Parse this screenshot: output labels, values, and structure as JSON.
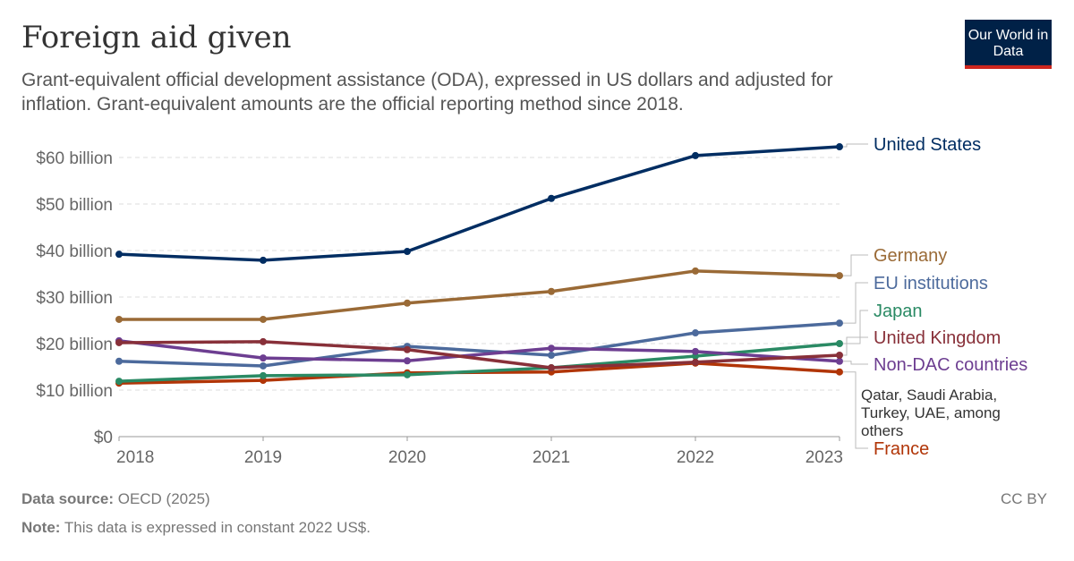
{
  "title": "Foreign aid given",
  "subtitle": "Grant-equivalent official development assistance (ODA), expressed in US dollars and adjusted for inflation. Grant-equivalent amounts are the official reporting method since 2018.",
  "logo": "Our World in Data",
  "footer": {
    "source_label": "Data source:",
    "source": "OECD (2025)",
    "note_label": "Note:",
    "note": "This data is expressed in constant 2022 US$.",
    "license": "CC BY"
  },
  "chart_data": {
    "type": "line",
    "x": [
      2018,
      2019,
      2020,
      2021,
      2022,
      2023
    ],
    "ylim": [
      0,
      60
    ],
    "yticks": [
      0,
      10,
      20,
      30,
      40,
      50,
      60
    ],
    "ytick_labels": [
      "$0",
      "$10 billion",
      "$20 billion",
      "$30 billion",
      "$40 billion",
      "$50 billion",
      "$60 billion"
    ],
    "xtick_labels": [
      "2018",
      "2019",
      "2020",
      "2021",
      "2022",
      "2023"
    ],
    "grid": "horizontal dashed",
    "legend": "right, inline labels",
    "series": [
      {
        "name": "United States",
        "color": "#002d62",
        "values": [
          39.2,
          37.9,
          39.8,
          51.2,
          60.4,
          62.3
        ]
      },
      {
        "name": "Germany",
        "color": "#9a6a36",
        "values": [
          25.2,
          25.2,
          28.7,
          31.2,
          35.6,
          34.6
        ]
      },
      {
        "name": "EU institutions",
        "color": "#4c6a9c",
        "values": [
          16.2,
          15.2,
          19.4,
          17.5,
          22.3,
          24.4
        ]
      },
      {
        "name": "Japan",
        "color": "#2a8a64",
        "values": [
          11.9,
          13.1,
          13.3,
          14.8,
          17.3,
          20.0
        ]
      },
      {
        "name": "United Kingdom",
        "color": "#883039",
        "values": [
          20.2,
          20.4,
          18.7,
          14.8,
          16.0,
          17.5
        ]
      },
      {
        "name": "Non-DAC countries",
        "color": "#6d3e91",
        "note": "Qatar, Saudi Arabia, Turkey, UAE, among others",
        "values": [
          20.6,
          16.9,
          16.3,
          19.0,
          18.3,
          16.2
        ]
      },
      {
        "name": "France",
        "color": "#b13507",
        "values": [
          11.5,
          12.1,
          13.7,
          13.9,
          15.8,
          13.9
        ]
      }
    ]
  }
}
